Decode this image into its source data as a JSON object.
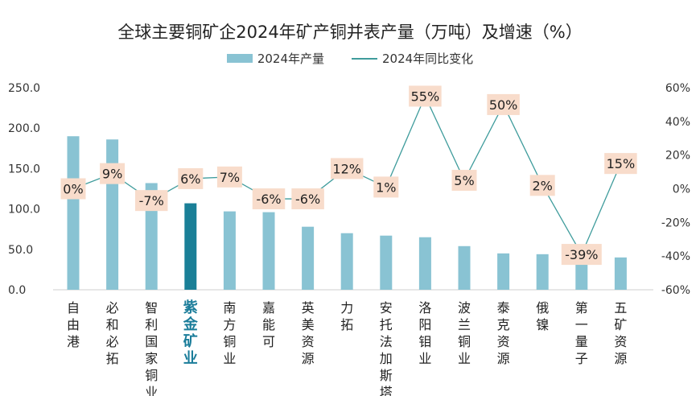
{
  "colors": {
    "bar": "#89c3d3",
    "bar_highlight": "#1a7f97",
    "line": "#3f9c9c",
    "label_bg": "#f8dccb",
    "highlight_text": "#1b7d9a"
  },
  "chart_data": {
    "type": "bar",
    "title": "全球主要铜矿企2024年矿产铜并表产量（万吨）及增速（%）",
    "legend_position": "top",
    "grid": false,
    "categories": [
      "自由港",
      "必和必拓",
      "智利国家铜业",
      "紫金矿业",
      "南方铜业",
      "嘉能可",
      "英美资源",
      "力拓",
      "安托法加斯塔",
      "洛阳钼业",
      "波兰铜业",
      "泰克资源",
      "俄镍",
      "第一量子",
      "五矿资源"
    ],
    "highlight_category": "紫金矿业",
    "series": [
      {
        "name": "2024年产量",
        "type": "bar",
        "axis": "left",
        "values": [
          190,
          186,
          132,
          107,
          97,
          96,
          78,
          70,
          67,
          65,
          54,
          45,
          44,
          43,
          40
        ]
      },
      {
        "name": "2024年同比变化",
        "type": "line",
        "axis": "right",
        "values": [
          0,
          9,
          -7,
          6,
          7,
          -6,
          -6,
          12,
          1,
          55,
          5,
          50,
          2,
          -39,
          15
        ],
        "labels": [
          "0%",
          "9%",
          "-7%",
          "6%",
          "7%",
          "-6%",
          "-6%",
          "12%",
          "1%",
          "55%",
          "5%",
          "50%",
          "2%",
          "-39%",
          "15%"
        ]
      }
    ],
    "y_left": {
      "min": 0,
      "max": 250,
      "ticks": [
        0,
        50,
        100,
        150,
        200,
        250
      ],
      "tick_labels": [
        "0.0",
        "50.0",
        "100.0",
        "150.0",
        "200.0",
        "250.0"
      ]
    },
    "y_right": {
      "min": -60,
      "max": 60,
      "ticks": [
        -60,
        -40,
        -20,
        0,
        20,
        40,
        60
      ],
      "tick_labels": [
        "-60%",
        "-40%",
        "-20%",
        "0%",
        "20%",
        "40%",
        "60%"
      ]
    }
  }
}
